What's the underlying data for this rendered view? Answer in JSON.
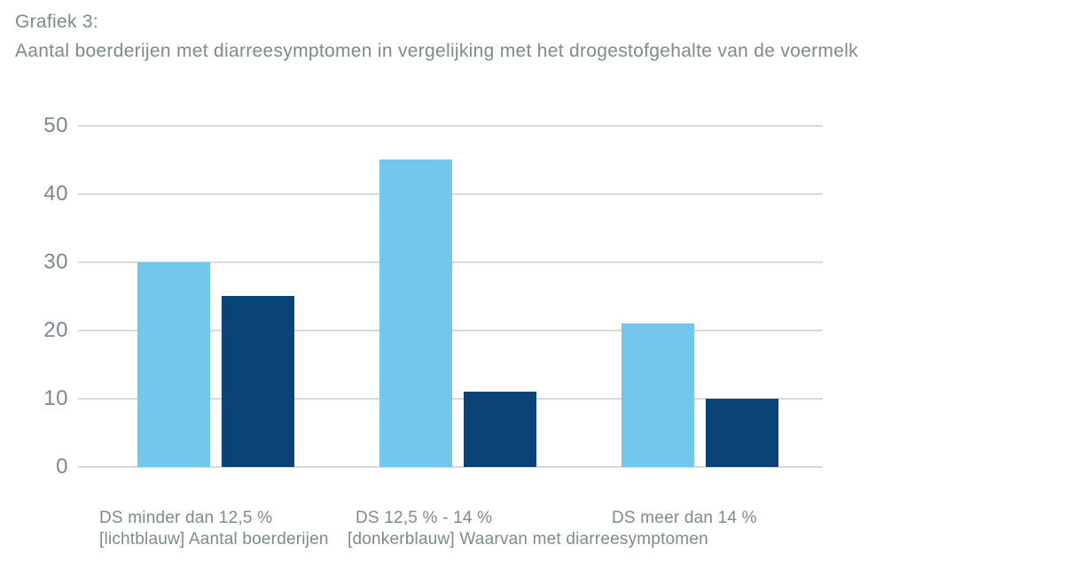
{
  "title": {
    "line1": "Grafiek 3:",
    "line2": "Aantal boerderijen met diarreesymptomen in vergelijking met het drogestofgehalte van de voermelk"
  },
  "chart_data": {
    "type": "bar",
    "title": "Grafiek 3: Aantal boerderijen met diarreesymptomen in vergelijking met het drogestofgehalte van de voermelk",
    "categories": [
      "DS minder dan 12,5 %",
      "DS 12,5 % - 14 %",
      "DS meer dan 14 %"
    ],
    "series": [
      {
        "name": "Aantal boerderijen",
        "color_name": "lichtblauw",
        "color": "#72C7EA",
        "values": [
          30,
          45,
          21
        ]
      },
      {
        "name": "Waarvan met diarreesymptomen",
        "color_name": "donkerblauw",
        "color": "#0A4375",
        "values": [
          25,
          11,
          10
        ]
      }
    ],
    "ylim": [
      0,
      50
    ],
    "yticks": [
      50,
      40,
      30,
      20,
      10,
      0
    ],
    "xlabel": "",
    "ylabel": "",
    "grid": "horizontal",
    "legend_position": "below-x-labels",
    "legend_labels": [
      "[lichtblauw] Aantal boerderijen",
      "[donkerblauw] Waarvan met diarreesymptomen"
    ]
  },
  "colors": {
    "background": "#FFFFFF",
    "gridline": "#D9D9D9",
    "title_text": "#7D8B8C",
    "axis_text": "#7B8890",
    "label_text": "#7D8B8C",
    "series_light": "#72C7EA",
    "series_dark": "#0A4375"
  }
}
